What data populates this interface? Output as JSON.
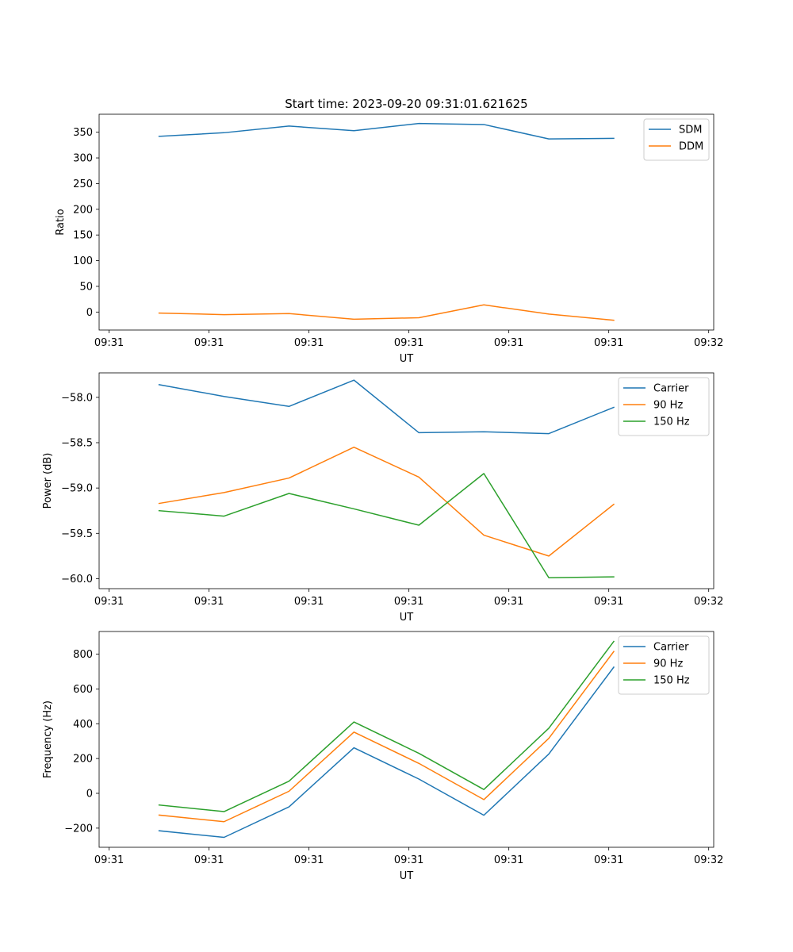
{
  "chart_data": [
    {
      "type": "line",
      "title": "Start time: 2023-09-20 09:31:01.621625",
      "xlabel": "UT",
      "ylabel": "Ratio",
      "x": [
        0.5,
        1.15,
        1.8,
        2.45,
        3.1,
        3.75,
        4.4,
        5.05
      ],
      "xlim": [
        -0.1,
        6.05
      ],
      "xticks": [
        0,
        1,
        2,
        3,
        4,
        5,
        6
      ],
      "xticklabels": [
        "09:31",
        "09:31",
        "09:31",
        "09:31",
        "09:31",
        "09:31",
        "09:32"
      ],
      "ylim": [
        -35,
        385
      ],
      "yticks": [
        0,
        50,
        100,
        150,
        200,
        250,
        300,
        350
      ],
      "yticklabels": [
        "0",
        "50",
        "100",
        "150",
        "200",
        "250",
        "300",
        "350"
      ],
      "legend": "top-right",
      "series": [
        {
          "name": "SDM",
          "color": "#1f77b4",
          "values": [
            342,
            349,
            362,
            353,
            367,
            365,
            337,
            338
          ]
        },
        {
          "name": "DDM",
          "color": "#ff7f0e",
          "values": [
            -2,
            -5,
            -3,
            -14,
            -11,
            14,
            -4,
            -16
          ]
        }
      ]
    },
    {
      "type": "line",
      "title": "",
      "xlabel": "UT",
      "ylabel": "Power (dB)",
      "x": [
        0.5,
        1.15,
        1.8,
        2.45,
        3.1,
        3.75,
        4.4,
        5.05
      ],
      "xlim": [
        -0.1,
        6.05
      ],
      "xticks": [
        0,
        1,
        2,
        3,
        4,
        5,
        6
      ],
      "xticklabels": [
        "09:31",
        "09:31",
        "09:31",
        "09:31",
        "09:31",
        "09:31",
        "09:32"
      ],
      "ylim": [
        -60.11,
        -57.73
      ],
      "yticks": [
        -60.0,
        -59.5,
        -59.0,
        -58.5,
        -58.0
      ],
      "yticklabels": [
        "−60.0",
        "−59.5",
        "−59.0",
        "−58.5",
        "−58.0"
      ],
      "legend": "top-right",
      "series": [
        {
          "name": "Carrier",
          "color": "#1f77b4",
          "values": [
            -57.86,
            -57.99,
            -58.1,
            -57.81,
            -58.39,
            -58.38,
            -58.4,
            -58.11
          ]
        },
        {
          "name": "90 Hz",
          "color": "#ff7f0e",
          "values": [
            -59.17,
            -59.05,
            -58.89,
            -58.55,
            -58.88,
            -59.52,
            -59.75,
            -59.18
          ]
        },
        {
          "name": "150 Hz",
          "color": "#2ca02c",
          "values": [
            -59.25,
            -59.31,
            -59.06,
            -59.23,
            -59.41,
            -58.84,
            -59.99,
            -59.98
          ]
        }
      ]
    },
    {
      "type": "line",
      "title": "",
      "xlabel": "UT",
      "ylabel": "Frequency (Hz)",
      "x": [
        0.5,
        1.15,
        1.8,
        2.45,
        3.1,
        3.75,
        4.4,
        5.05
      ],
      "xlim": [
        -0.1,
        6.05
      ],
      "xticks": [
        0,
        1,
        2,
        3,
        4,
        5,
        6
      ],
      "xticklabels": [
        "09:31",
        "09:31",
        "09:31",
        "09:31",
        "09:31",
        "09:31",
        "09:32"
      ],
      "ylim": [
        -310,
        930
      ],
      "yticks": [
        -200,
        0,
        200,
        400,
        600,
        800
      ],
      "yticklabels": [
        "−200",
        "0",
        "200",
        "400",
        "600",
        "800"
      ],
      "legend": "top-right",
      "series": [
        {
          "name": "Carrier",
          "color": "#1f77b4",
          "values": [
            -215,
            -253,
            -78,
            262,
            82,
            -126,
            226,
            725
          ]
        },
        {
          "name": "90 Hz",
          "color": "#ff7f0e",
          "values": [
            -125,
            -163,
            12,
            352,
            172,
            -36,
            316,
            815
          ]
        },
        {
          "name": "150 Hz",
          "color": "#2ca02c",
          "values": [
            -67,
            -105,
            70,
            410,
            230,
            22,
            374,
            873
          ]
        }
      ]
    }
  ]
}
